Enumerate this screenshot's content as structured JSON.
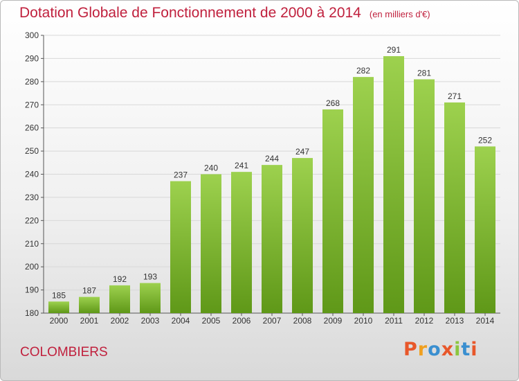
{
  "title": "Dotation Globale de Fonctionnement de 2000 à 2014",
  "unit_note": "(en milliers d'€)",
  "commune": "COLOMBIERS",
  "logo": {
    "text": "Proxiti",
    "colors": [
      "#e8572a",
      "#f0a020",
      "#3a8fd0",
      "#e8572a",
      "#8cc63f",
      "#3a8fd0",
      "#e8572a"
    ]
  },
  "colors": {
    "bar_top": "#9dd14e",
    "bar_bottom": "#5f9818",
    "title": "#c0203d",
    "grid": "#d8d8d8"
  },
  "chart_data": {
    "type": "bar",
    "categories": [
      "2000",
      "2001",
      "2002",
      "2003",
      "2004",
      "2005",
      "2006",
      "2007",
      "2008",
      "2009",
      "2010",
      "2011",
      "2012",
      "2013",
      "2014"
    ],
    "values": [
      185,
      187,
      192,
      193,
      237,
      240,
      241,
      244,
      247,
      268,
      282,
      291,
      281,
      271,
      252
    ],
    "title": "Dotation Globale de Fonctionnement de 2000 à 2014",
    "xlabel": "",
    "ylabel": "",
    "ylim": [
      180,
      300
    ],
    "yticks": [
      180,
      190,
      200,
      210,
      220,
      230,
      240,
      250,
      260,
      270,
      280,
      290,
      300
    ],
    "grid": true,
    "legend": "none"
  }
}
